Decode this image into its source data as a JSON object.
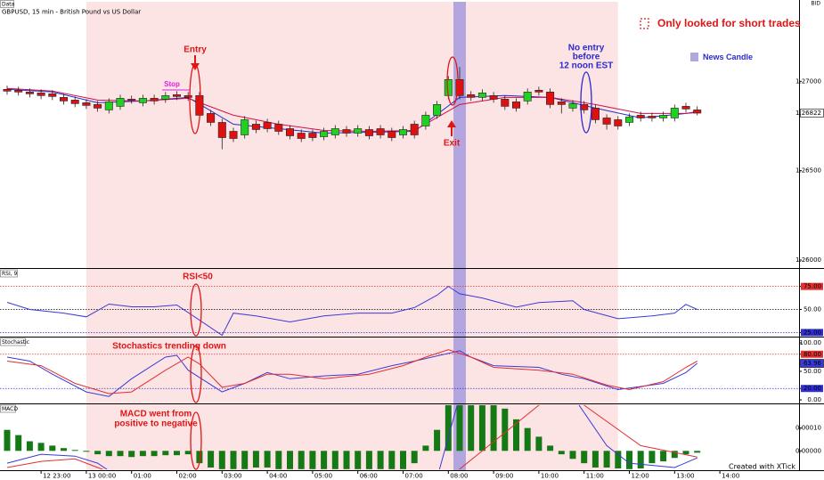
{
  "chart_data": [
    {
      "type": "candlestick",
      "title": "Data",
      "subtitle": "GBPUSD, 15 min - British Pound vs US Dollar",
      "price_source": "BID",
      "x": [
        0,
        1,
        2,
        3,
        4,
        5,
        6,
        7,
        8,
        9,
        10,
        11,
        12,
        13,
        14,
        15,
        16,
        17,
        18,
        19,
        20,
        21,
        22,
        23,
        24,
        25,
        26,
        27,
        28,
        29,
        30,
        31,
        32,
        33,
        34,
        35,
        36,
        37,
        38,
        39,
        40,
        41,
        42,
        43,
        44,
        45,
        46,
        47,
        48,
        49,
        50,
        51,
        52,
        53,
        54,
        55,
        56,
        57,
        58,
        59,
        60,
        61
      ],
      "open": [
        1.26955,
        1.2695,
        1.2694,
        1.26935,
        1.2693,
        1.2691,
        1.26895,
        1.2688,
        1.2687,
        1.2684,
        1.2686,
        1.269,
        1.2688,
        1.26905,
        1.269,
        1.26925,
        1.2692,
        1.2692,
        1.2682,
        1.2677,
        1.2672,
        1.267,
        1.2676,
        1.2677,
        1.2676,
        1.26735,
        1.2671,
        1.2671,
        1.2669,
        1.267,
        1.2673,
        1.2671,
        1.2673,
        1.26735,
        1.2672,
        1.267,
        1.2676,
        1.2675,
        1.2681,
        1.2692,
        1.2701,
        1.26925,
        1.2691,
        1.2692,
        1.269,
        1.26885,
        1.2689,
        1.2695,
        1.2694,
        1.26885,
        1.2685,
        1.2687,
        1.2685,
        1.26795,
        1.26785,
        1.2677,
        1.2681,
        1.26805,
        1.26795,
        1.26795,
        1.2686,
        1.2684
      ],
      "high": [
        1.26975,
        1.2697,
        1.2696,
        1.26955,
        1.2695,
        1.2693,
        1.26915,
        1.269,
        1.2689,
        1.26905,
        1.26925,
        1.2692,
        1.26925,
        1.26925,
        1.2694,
        1.26945,
        1.2694,
        1.2694,
        1.2684,
        1.2679,
        1.2674,
        1.26805,
        1.2678,
        1.2679,
        1.2678,
        1.26755,
        1.2673,
        1.2673,
        1.2674,
        1.26755,
        1.2675,
        1.26755,
        1.2675,
        1.26755,
        1.2674,
        1.2675,
        1.2678,
        1.2683,
        1.2689,
        1.2703,
        1.2708,
        1.26945,
        1.26955,
        1.2694,
        1.2692,
        1.26905,
        1.2696,
        1.2697,
        1.2696,
        1.26905,
        1.26895,
        1.2689,
        1.2687,
        1.26815,
        1.26805,
        1.2682,
        1.2683,
        1.26825,
        1.2683,
        1.2687,
        1.2688,
        1.2686
      ],
      "low": [
        1.26925,
        1.2692,
        1.2691,
        1.269,
        1.26895,
        1.2687,
        1.26855,
        1.26845,
        1.2683,
        1.2682,
        1.2684,
        1.26875,
        1.2686,
        1.2687,
        1.2688,
        1.26895,
        1.2689,
        1.2679,
        1.2675,
        1.2662,
        1.2666,
        1.2668,
        1.2671,
        1.26715,
        1.267,
        1.26675,
        1.2666,
        1.26665,
        1.2667,
        1.2668,
        1.2669,
        1.2669,
        1.26675,
        1.2668,
        1.26665,
        1.2668,
        1.2668,
        1.2673,
        1.2679,
        1.269,
        1.269,
        1.2689,
        1.2689,
        1.2688,
        1.2684,
        1.2683,
        1.2687,
        1.2692,
        1.2685,
        1.2682,
        1.2683,
        1.2682,
        1.26765,
        1.2673,
        1.2673,
        1.2675,
        1.26775,
        1.26775,
        1.26775,
        1.26775,
        1.26825,
        1.2681
      ],
      "close": [
        1.26945,
        1.2694,
        1.2693,
        1.2692,
        1.26915,
        1.2689,
        1.26875,
        1.26865,
        1.2685,
        1.26885,
        1.26905,
        1.26895,
        1.26905,
        1.2689,
        1.2692,
        1.26915,
        1.2691,
        1.2681,
        1.2677,
        1.26685,
        1.2668,
        1.26785,
        1.2673,
        1.26735,
        1.2672,
        1.26695,
        1.2668,
        1.26685,
        1.2672,
        1.26735,
        1.2671,
        1.26735,
        1.26695,
        1.267,
        1.26685,
        1.2673,
        1.267,
        1.2681,
        1.2687,
        1.2701,
        1.2692,
        1.2691,
        1.26935,
        1.269,
        1.2686,
        1.2685,
        1.2694,
        1.2694,
        1.2687,
        1.2687,
        1.26875,
        1.2684,
        1.26785,
        1.2676,
        1.2675,
        1.268,
        1.26795,
        1.26795,
        1.2681,
        1.2685,
        1.26845,
        1.26822
      ],
      "up_color": "#1fd21f",
      "down_color": "#e01010",
      "overlays": [
        {
          "color": "#1f2fd0",
          "x": [
            0,
            4,
            8,
            12,
            16,
            20,
            24,
            28,
            32,
            36,
            40,
            44,
            48,
            52,
            56,
            60,
            61
          ],
          "values": [
            1.26955,
            1.2694,
            1.2688,
            1.2689,
            1.2691,
            1.2676,
            1.26735,
            1.2671,
            1.26715,
            1.2672,
            1.2691,
            1.2692,
            1.2691,
            1.2685,
            1.26795,
            1.2682,
            1.2683
          ]
        },
        {
          "color": "#d0104a",
          "x": [
            0,
            4,
            8,
            12,
            16,
            20,
            24,
            28,
            32,
            36,
            40,
            44,
            48,
            52,
            56,
            60,
            61
          ],
          "values": [
            1.2696,
            1.26945,
            1.26895,
            1.2689,
            1.26905,
            1.2681,
            1.2676,
            1.26725,
            1.2672,
            1.26725,
            1.2687,
            1.2691,
            1.2691,
            1.2687,
            1.2682,
            1.2682,
            1.26825
          ]
        }
      ],
      "xlim": [
        -0.63,
        70
      ],
      "xticks": [
        {
          "value": 3,
          "label": "12 23:00"
        },
        {
          "value": 7,
          "label": "13 00:00"
        },
        {
          "value": 11,
          "label": "01:00"
        },
        {
          "value": 15,
          "label": "02:00"
        },
        {
          "value": 19,
          "label": "03:00"
        },
        {
          "value": 23,
          "label": "04:00"
        },
        {
          "value": 27,
          "label": "05:00"
        },
        {
          "value": 31,
          "label": "06:00"
        },
        {
          "value": 35,
          "label": "07:00"
        },
        {
          "value": 39,
          "label": "08:00"
        },
        {
          "value": 43,
          "label": "09:00"
        },
        {
          "value": 47,
          "label": "10:00"
        },
        {
          "value": 51,
          "label": "11:00"
        },
        {
          "value": 55,
          "label": "12:00"
        },
        {
          "value": 59,
          "label": "13:00"
        },
        {
          "value": 63,
          "label": "14:00"
        }
      ],
      "ylim": [
        1.2596,
        1.27435
      ],
      "yticks": [
        {
          "value": 1.27,
          "label": "1.27000"
        },
        {
          "value": 1.265,
          "label": "1.26500"
        },
        {
          "value": 1.26,
          "label": "1.26000"
        }
      ],
      "shaded_x": [
        7,
        54
      ],
      "shade_color": "#fde4e4",
      "news_candle": 40,
      "news_color": "#b3a6df",
      "annotations": {
        "short_only": "Only looked for short trades",
        "news": "News Candle",
        "entry": "Entry",
        "stop": "Stop",
        "exit": "Exit",
        "no_entry": [
          "No entry",
          "before",
          "12 noon EST"
        ]
      }
    },
    {
      "type": "line",
      "title": "RSI, 9",
      "annotation": "RSI<50",
      "series": [
        {
          "color": "#3a3ad8",
          "x": [
            0,
            2,
            5,
            7,
            9,
            11,
            13,
            15,
            17,
            19,
            20,
            22,
            25,
            28,
            31,
            34,
            36,
            38,
            39,
            40,
            42,
            45,
            47,
            50,
            51,
            54,
            57,
            59,
            60,
            61
          ],
          "values": [
            57.7,
            50,
            46,
            42,
            55.8,
            52.9,
            52.9,
            54.8,
            38.5,
            22,
            46,
            43,
            36.5,
            43,
            46,
            46,
            52,
            65.5,
            75,
            67,
            62.5,
            52.5,
            57.5,
            59.5,
            50,
            40,
            43,
            46,
            55.5,
            50
          ]
        }
      ],
      "ylim": [
        21.5,
        93
      ],
      "yticks": [
        {
          "value": 75,
          "label": "75.00"
        },
        {
          "value": 50,
          "label": "50.00"
        },
        {
          "value": 25,
          "label": "25.00"
        }
      ],
      "grid_colors": [
        "#e03030",
        "#000000",
        "#3030d0"
      ]
    },
    {
      "type": "line",
      "title": "Stochastic",
      "annotation": "Stochastics trending down",
      "series": [
        {
          "color": "#3a3ad8",
          "x": [
            0,
            2,
            4,
            7,
            9,
            11,
            14,
            15,
            16,
            19,
            21,
            23,
            25,
            28,
            31,
            34,
            36,
            40,
            41,
            43,
            47,
            49,
            51,
            54,
            58,
            60,
            61
          ],
          "values": [
            75,
            68,
            45,
            14,
            6,
            37,
            75,
            78,
            52,
            14,
            29,
            48,
            37,
            42,
            45,
            60,
            68,
            86,
            75,
            60,
            57,
            45,
            37,
            18,
            29,
            48,
            63.96
          ]
        },
        {
          "color": "#e03030",
          "x": [
            0,
            3,
            6,
            9,
            11,
            14,
            16,
            17,
            19,
            21,
            23,
            25,
            28,
            32,
            35,
            37,
            39,
            41,
            43,
            47,
            50,
            53,
            55,
            58,
            60,
            61
          ],
          "values": [
            68,
            60,
            29,
            11,
            14,
            52,
            75,
            63,
            22,
            29,
            45,
            45,
            37,
            45,
            60,
            75,
            88,
            75,
            57,
            52,
            45,
            26,
            18,
            32,
            57,
            68
          ]
        }
      ],
      "ylim": [
        -4.6,
        107.7
      ],
      "yticks": [
        {
          "value": 100,
          "label": "100.00"
        },
        {
          "value": 80,
          "label": "80.00"
        },
        {
          "value": 50,
          "label": "50.00"
        },
        {
          "value": 20,
          "label": "20.00"
        },
        {
          "value": 0,
          "label": "0.00"
        }
      ],
      "grid_colors": [
        null,
        "#e03030",
        null,
        "#3030d0",
        null
      ]
    },
    {
      "type": "macd",
      "title": "MACD",
      "annotation": [
        "MACD went from",
        "positive to negative"
      ],
      "x": [
        0,
        1,
        2,
        3,
        4,
        5,
        6,
        7,
        8,
        9,
        10,
        11,
        12,
        13,
        14,
        15,
        16,
        17,
        18,
        19,
        20,
        21,
        22,
        23,
        24,
        25,
        26,
        27,
        28,
        29,
        30,
        31,
        32,
        33,
        34,
        35,
        36,
        37,
        38,
        39,
        40,
        41,
        42,
        43,
        44,
        45,
        46,
        47,
        48,
        49,
        50,
        51,
        52,
        53,
        54,
        55,
        56,
        57,
        58,
        59,
        60,
        61
      ],
      "values": [
        9.2e-05,
        6.9e-05,
        4.2e-05,
        3.5e-05,
        2.3e-05,
        1.2e-05,
        4e-06,
        -4e-06,
        -1.5e-05,
        -2.3e-05,
        -2.3e-05,
        -2.7e-05,
        -2.3e-05,
        -2.3e-05,
        -1.9e-05,
        -1.9e-05,
        -1.5e-05,
        -5.4e-05,
        -7.3e-05,
        -8e-05,
        -8e-05,
        -8e-05,
        -7.3e-05,
        -7.3e-05,
        -8e-05,
        -8e-05,
        -8e-05,
        -8e-05,
        -8e-05,
        -8e-05,
        -8e-05,
        -8e-05,
        -8e-05,
        -8e-05,
        -8e-05,
        -8e-05,
        -5.4e-05,
        2.3e-05,
        9.2e-05,
        0.0002,
        0.0002,
        0.0002,
        0.0002,
        0.0002,
        0.000185,
        0.000138,
        0.0001,
        6.2e-05,
        2.3e-05,
        -1.5e-05,
        -3.5e-05,
        -5.4e-05,
        -7.3e-05,
        -7.3e-05,
        -7.7e-05,
        -8e-05,
        -7.7e-05,
        -5.4e-05,
        -4.6e-05,
        -3.1e-05,
        -1.5e-05,
        -8e-06
      ],
      "color": "#157a15",
      "series": [
        {
          "color": "#3a3ad8",
          "x": [
            0,
            3,
            6,
            8,
            10,
            38,
            40,
            50,
            53,
            55,
            59,
            61
          ],
          "values": [
            -5.4e-05,
            -1.5e-05,
            -2.3e-05,
            -5.4e-05,
            -0.00012,
            -0.00012,
            0.00024,
            0.00024,
            2.3e-05,
            -5.4e-05,
            -7.3e-05,
            -3.1e-05
          ]
        },
        {
          "color": "#e03030",
          "x": [
            0,
            3,
            6,
            8,
            10,
            39,
            40,
            47,
            48,
            50,
            51,
            56,
            61
          ],
          "values": [
            -7.3e-05,
            -4.6e-05,
            -3.5e-05,
            -7.3e-05,
            -0.00011,
            -0.00011,
            -8e-05,
            0.0002,
            0.00022,
            0.00022,
            0.0002,
            2.3e-05,
            -2.7e-05
          ]
        }
      ],
      "ylim": [
        -8.08e-05,
        0.0002
      ],
      "yticks": [
        {
          "value": 0.0001,
          "label": "0.00010"
        },
        {
          "value": 0,
          "label": "0.00000"
        }
      ]
    }
  ],
  "footer": "Created with XTick"
}
